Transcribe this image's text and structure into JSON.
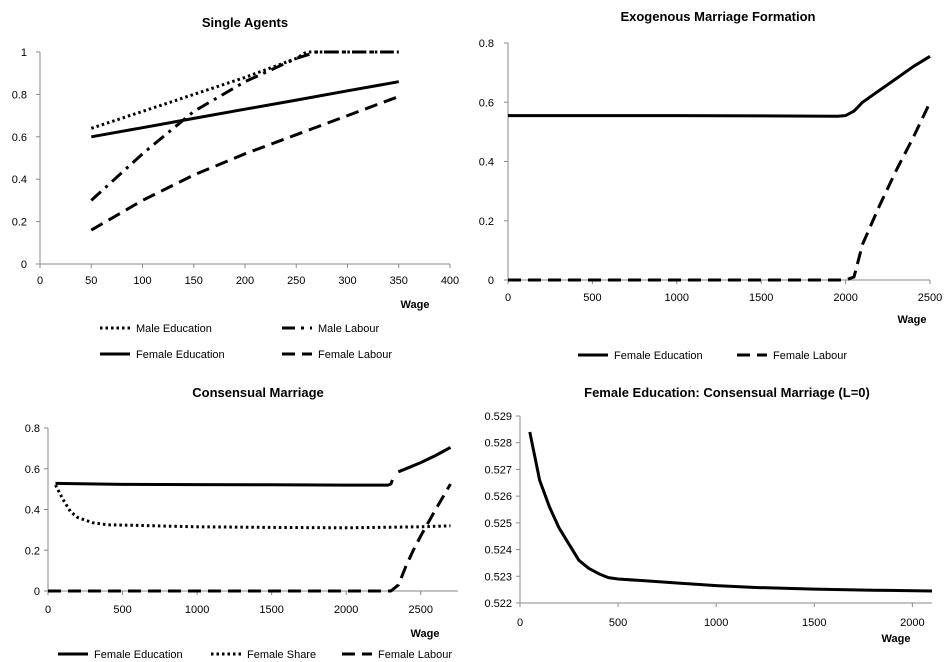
{
  "figure": {
    "background": "#ffffff",
    "line_color": "#000000"
  },
  "chart_data": [
    {
      "type": "line",
      "title": "Single Agents",
      "xlabel": "Wage",
      "ylabel": "",
      "xlim": [
        0,
        400
      ],
      "ylim": [
        0,
        1
      ],
      "x_ticks": [
        "0",
        "50",
        "100",
        "150",
        "200",
        "250",
        "300",
        "350",
        "400"
      ],
      "y_ticks": [
        "0",
        "0.2",
        "0.4",
        "0.6",
        "0.8",
        "1"
      ],
      "legend_position": "bottom",
      "series": [
        {
          "name": "Male Education",
          "style": "dotted",
          "x": [
            50,
            100,
            150,
            200,
            250,
            260,
            300,
            350
          ],
          "y": [
            0.64,
            0.72,
            0.8,
            0.88,
            0.97,
            1.0,
            1.0,
            1.0
          ]
        },
        {
          "name": "Male Labour",
          "style": "dashdot",
          "x": [
            50,
            100,
            150,
            200,
            250,
            270,
            300,
            350
          ],
          "y": [
            0.3,
            0.52,
            0.72,
            0.86,
            0.97,
            1.0,
            1.0,
            1.0
          ]
        },
        {
          "name": "Female Education",
          "style": "solid",
          "x": [
            50,
            100,
            150,
            200,
            250,
            300,
            350
          ],
          "y": [
            0.6,
            0.643,
            0.687,
            0.73,
            0.773,
            0.817,
            0.86
          ]
        },
        {
          "name": "Female Labour",
          "style": "dashed",
          "x": [
            50,
            100,
            150,
            200,
            250,
            300,
            350
          ],
          "y": [
            0.16,
            0.3,
            0.42,
            0.52,
            0.61,
            0.7,
            0.79
          ]
        }
      ]
    },
    {
      "type": "line",
      "title": "Exogenous Marriage Formation",
      "xlabel": "Wage",
      "ylabel": "",
      "xlim": [
        0,
        2500
      ],
      "ylim": [
        0,
        0.8
      ],
      "x_ticks": [
        "0",
        "500",
        "1000",
        "1500",
        "2000",
        "2500"
      ],
      "y_ticks": [
        "0",
        "0.2",
        "0.4",
        "0.6",
        "0.8"
      ],
      "legend_position": "bottom",
      "series": [
        {
          "name": "Female Education",
          "style": "solid",
          "x": [
            0,
            1000,
            1950,
            2000,
            2050,
            2100,
            2200,
            2300,
            2400,
            2500
          ],
          "y": [
            0.555,
            0.555,
            0.553,
            0.555,
            0.57,
            0.6,
            0.64,
            0.68,
            0.72,
            0.755
          ]
        },
        {
          "name": "Female Labour",
          "style": "dashed",
          "x": [
            0,
            1000,
            2000,
            2050,
            2100,
            2200,
            2300,
            2400,
            2500
          ],
          "y": [
            0.0,
            0.0,
            0.0,
            0.01,
            0.12,
            0.25,
            0.37,
            0.48,
            0.6
          ]
        }
      ]
    },
    {
      "type": "line",
      "title": "Consensual Marriage",
      "xlabel": "Wage",
      "ylabel": "",
      "xlim": [
        0,
        2750
      ],
      "ylim": [
        0,
        0.8
      ],
      "x_ticks": [
        "0",
        "500",
        "1000",
        "1500",
        "2000",
        "2500"
      ],
      "y_ticks": [
        "0",
        "0.2",
        "0.4",
        "0.6",
        "0.8"
      ],
      "legend_position": "bottom",
      "series": [
        {
          "name": "Female Education",
          "style": "solid",
          "segments": [
            {
              "x": [
                50,
                500,
                1000,
                1500,
                2000,
                2280,
                2300,
                2310
              ],
              "y": [
                0.528,
                0.523,
                0.522,
                0.521,
                0.52,
                0.52,
                0.525,
                0.545
              ]
            },
            {
              "x": [
                2350,
                2400,
                2500,
                2600,
                2700
              ],
              "y": [
                0.585,
                0.6,
                0.63,
                0.665,
                0.705
              ]
            }
          ]
        },
        {
          "name": "Female Share",
          "style": "dotted",
          "x": [
            50,
            100,
            150,
            200,
            300,
            400,
            600,
            1000,
            1500,
            2000,
            2500,
            2700
          ],
          "y": [
            0.52,
            0.45,
            0.39,
            0.36,
            0.335,
            0.325,
            0.322,
            0.315,
            0.312,
            0.31,
            0.315,
            0.32
          ]
        },
        {
          "name": "Female Labour",
          "style": "dashed",
          "x": [
            0,
            1000,
            2300,
            2350,
            2400,
            2450,
            2500,
            2600,
            2700
          ],
          "y": [
            0.0,
            0.0,
            0.0,
            0.03,
            0.12,
            0.2,
            0.27,
            0.4,
            0.525
          ]
        }
      ]
    },
    {
      "type": "line",
      "title": "Female Education: Consensual Marriage (L=0)",
      "xlabel": "Wage",
      "ylabel": "",
      "xlim": [
        0,
        2100
      ],
      "ylim": [
        0.522,
        0.529
      ],
      "x_ticks": [
        "0",
        "500",
        "1000",
        "1500",
        "2000"
      ],
      "y_ticks": [
        "0.522",
        "0.523",
        "0.524",
        "0.525",
        "0.526",
        "0.527",
        "0.528",
        "0.529"
      ],
      "legend_position": "none",
      "series": [
        {
          "name": "",
          "style": "solid",
          "x": [
            50,
            100,
            150,
            200,
            250,
            300,
            350,
            400,
            450,
            500,
            600,
            800,
            1000,
            1200,
            1500,
            1800,
            2100
          ],
          "y": [
            0.5284,
            0.5266,
            0.5256,
            0.5248,
            0.5242,
            0.5236,
            0.5233,
            0.5231,
            0.52295,
            0.5229,
            0.52285,
            0.52275,
            0.52265,
            0.52258,
            0.52252,
            0.52248,
            0.52245
          ]
        }
      ]
    }
  ]
}
